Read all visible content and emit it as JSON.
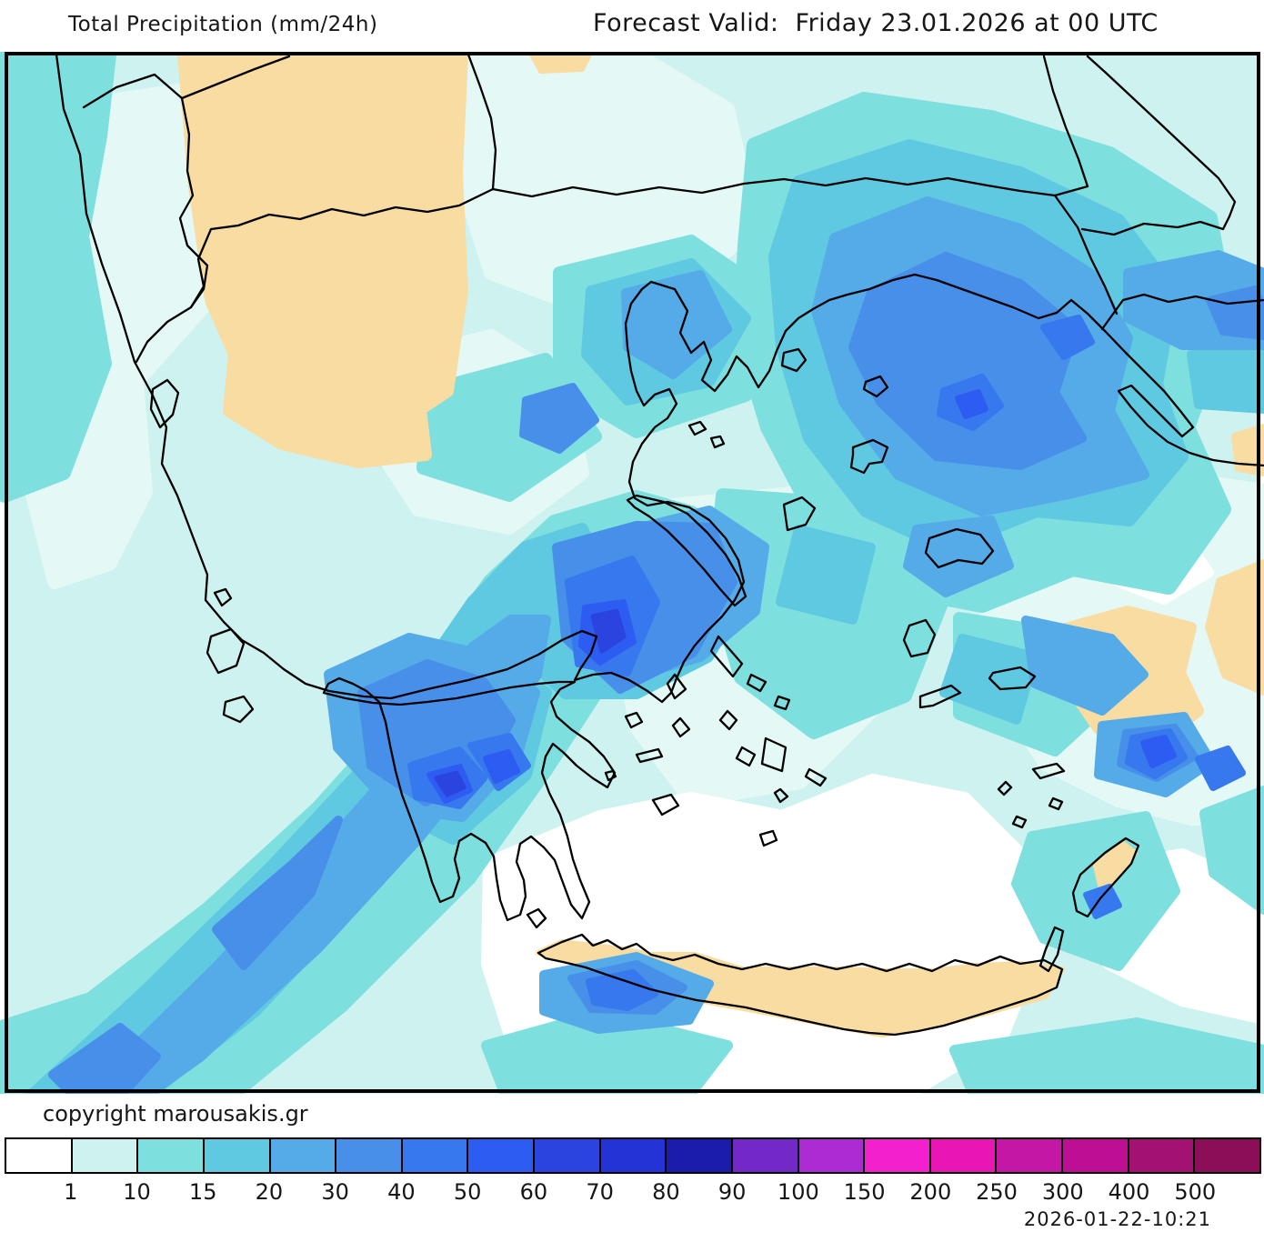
{
  "header": {
    "title": "Total Precipitation (mm/24h)",
    "forecast_label": "Forecast Valid:",
    "forecast_value": "Friday 23.01.2026 at 00 UTC"
  },
  "map": {
    "colors": {
      "sea_base": "#CEF2EF",
      "sea_pale": "#E4F9F6",
      "sea_dry": "#FFFFFF",
      "land_dry": "#F8DCA2",
      "coastline": "#000000",
      "frame": "#000000"
    }
  },
  "legend": {
    "title_units": "mm/24h",
    "labels": [
      "1",
      "10",
      "15",
      "20",
      "30",
      "40",
      "50",
      "60",
      "70",
      "80",
      "90",
      "100",
      "150",
      "200",
      "250",
      "300",
      "400",
      "500"
    ],
    "colors": [
      "#FFFFFF",
      "#CEF2EF",
      "#7EDFDF",
      "#60C9E2",
      "#55ABE8",
      "#478FE8",
      "#3878EE",
      "#2D5CF2",
      "#2B44E0",
      "#2433D6",
      "#1C1CAC",
      "#7229C8",
      "#AC2BD2",
      "#F320CE",
      "#E915B5",
      "#C417A6",
      "#BE0F94",
      "#A31173",
      "#8C0E59"
    ]
  },
  "footer": {
    "copyright": "copyright marousakis.gr",
    "timestamp": "2026-01-22-10:21"
  }
}
